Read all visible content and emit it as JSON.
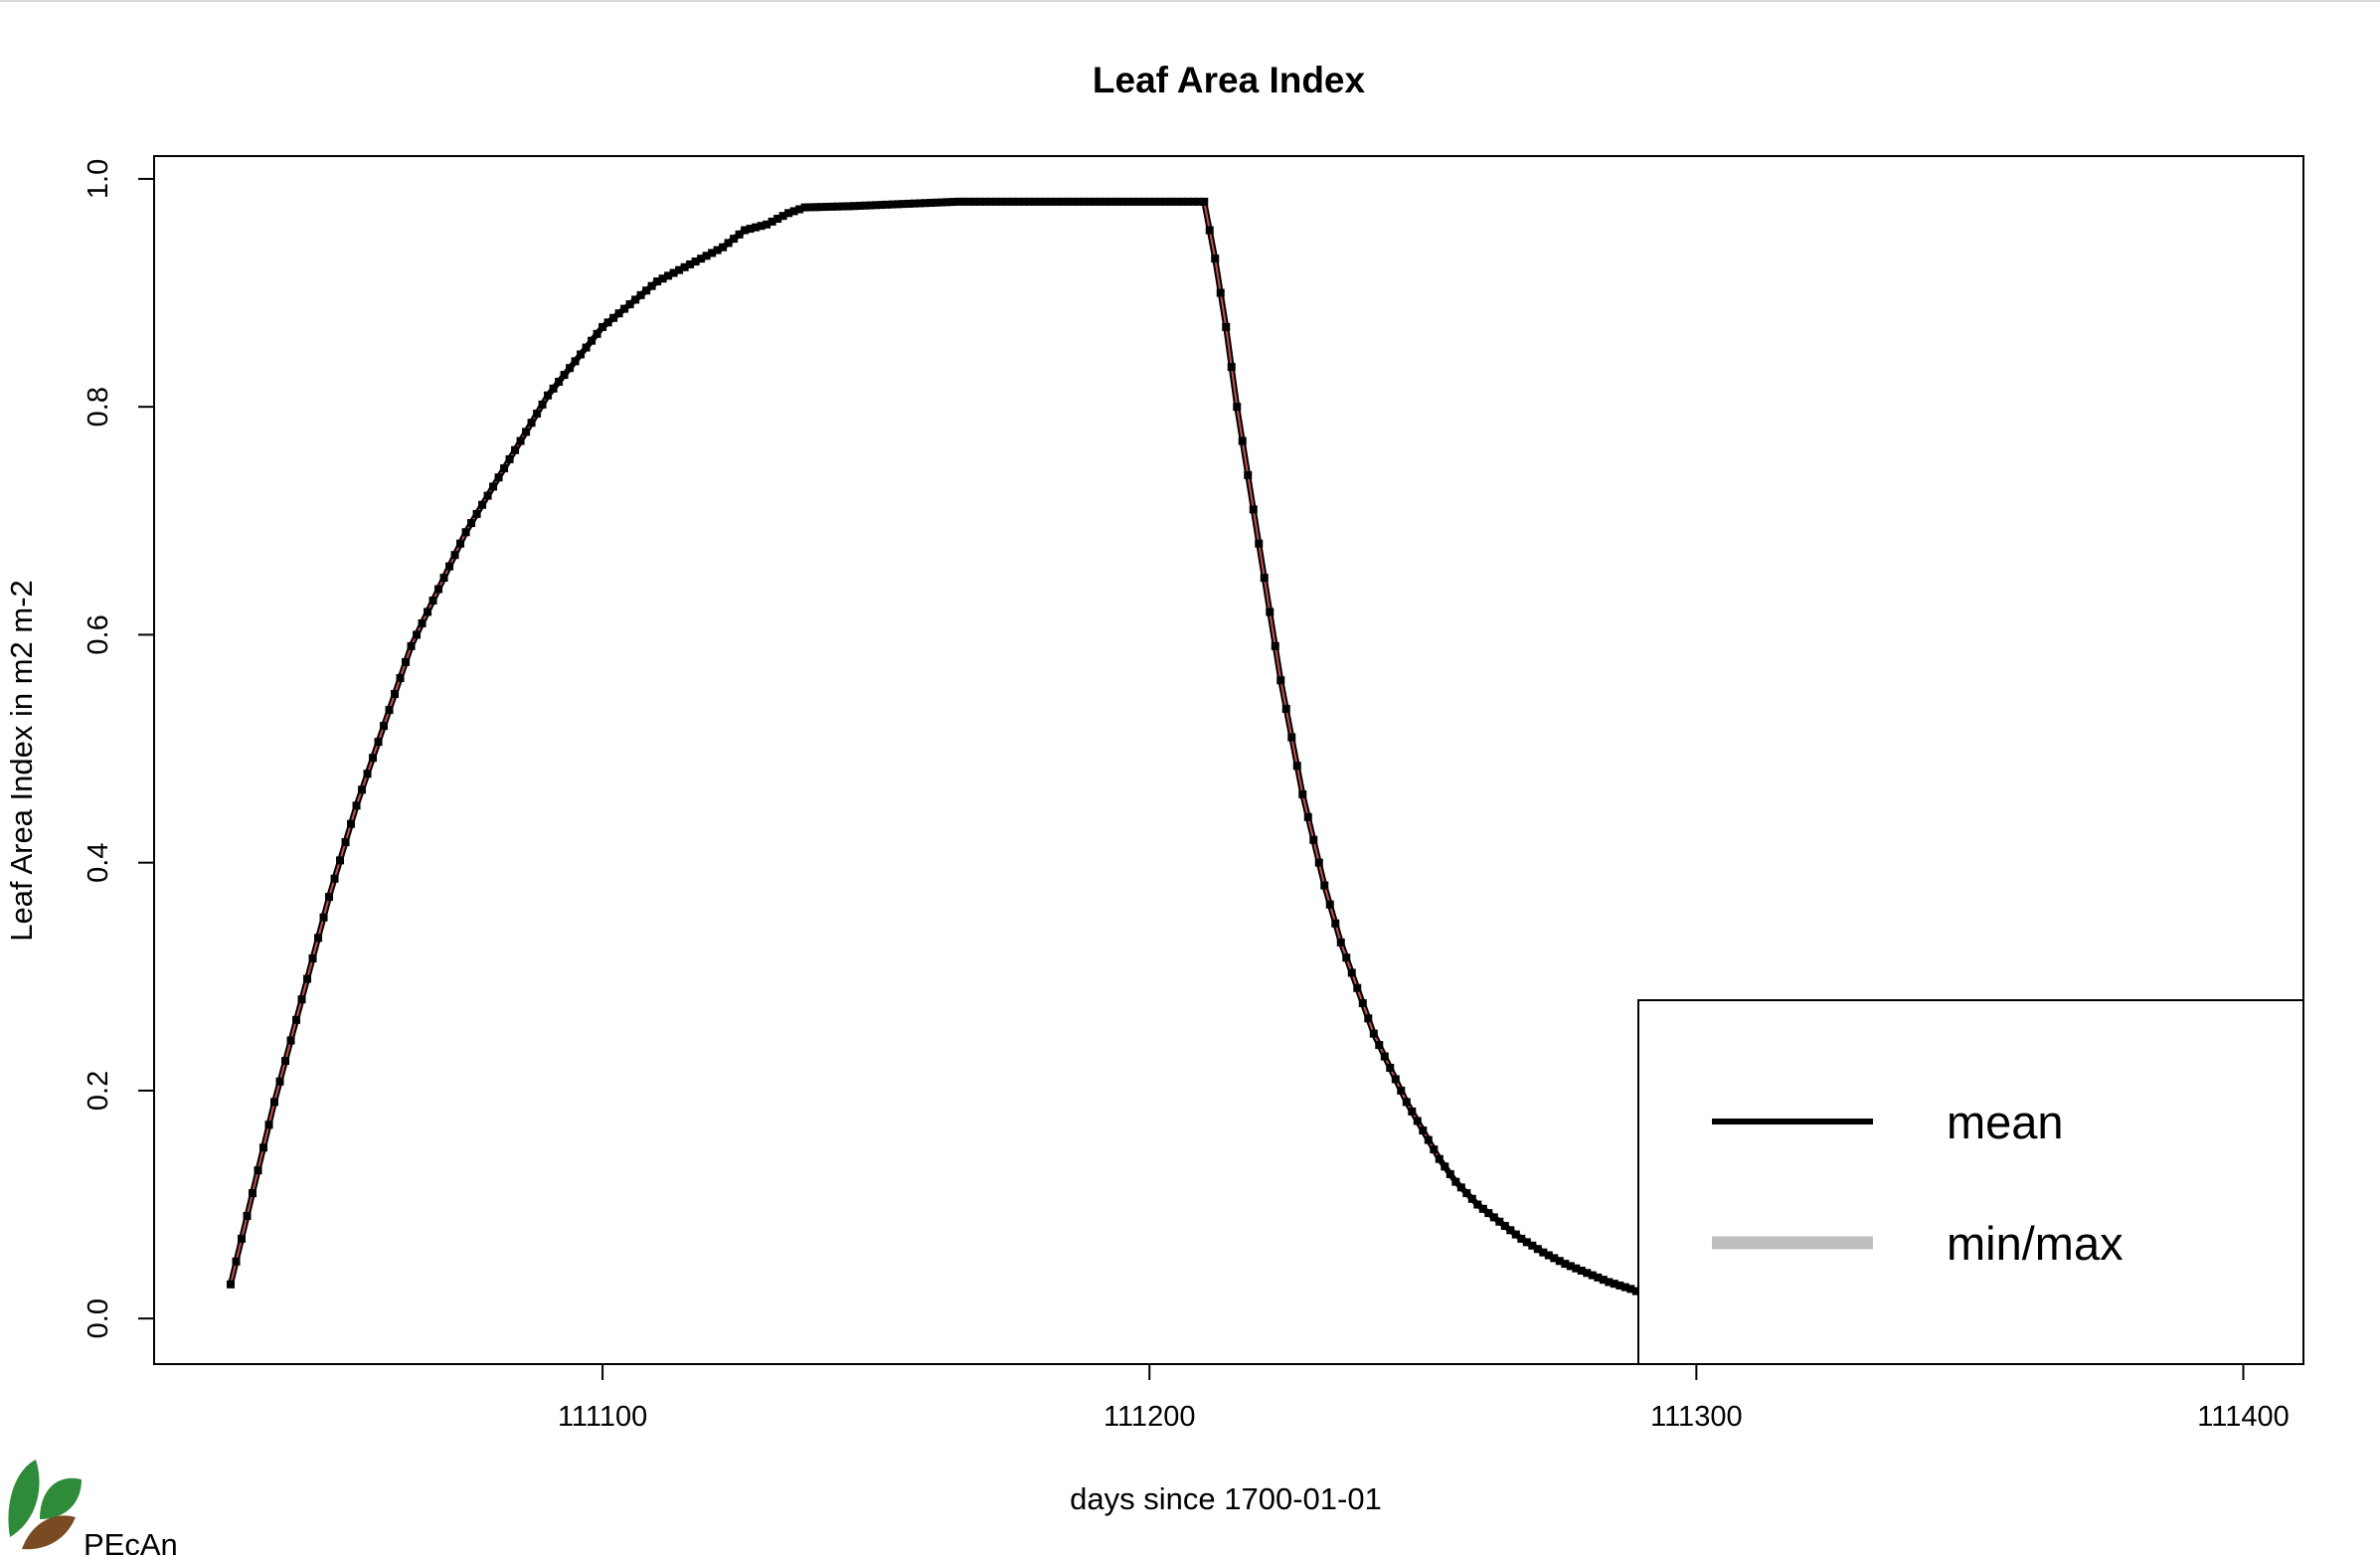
{
  "chart_data": {
    "type": "line",
    "title": "Leaf Area Index",
    "xlabel": "days since 1700-01-01",
    "ylabel": "Leaf Area Index in m2 m-2",
    "xlim": [
      111018,
      111411
    ],
    "ylim": [
      -0.04,
      1.02
    ],
    "x_ticks": [
      "111100",
      "111200",
      "111300",
      "111400"
    ],
    "y_ticks": [
      "0.0",
      "0.2",
      "0.4",
      "0.6",
      "0.8",
      "1.0"
    ],
    "grid": false,
    "legend_position": "bottom-right",
    "legend": [
      {
        "label": "mean",
        "color": "#000000"
      },
      {
        "label": "min/max",
        "color": "#bebebe"
      }
    ],
    "series": [
      {
        "name": "mean",
        "color": "#000000",
        "x": [
          111032,
          111036,
          111040,
          111045,
          111050,
          111055,
          111060,
          111065,
          111070,
          111075,
          111080,
          111085,
          111090,
          111095,
          111100,
          111105,
          111110,
          111114,
          111118,
          111122,
          111126,
          111130,
          111134,
          111137,
          111145,
          111155,
          111165,
          111180,
          111195,
          111210,
          111212,
          111214,
          111216,
          111218,
          111220,
          111222,
          111224,
          111226,
          111228,
          111230,
          111232,
          111235,
          111238,
          111241,
          111244,
          111247,
          111250,
          111253,
          111256,
          111260,
          111264,
          111268,
          111272,
          111276,
          111280,
          111284,
          111288,
          111290
        ],
        "y": [
          0.03,
          0.11,
          0.19,
          0.28,
          0.37,
          0.45,
          0.52,
          0.59,
          0.64,
          0.69,
          0.73,
          0.77,
          0.81,
          0.84,
          0.87,
          0.89,
          0.91,
          0.92,
          0.93,
          0.94,
          0.955,
          0.96,
          0.97,
          0.975,
          0.976,
          0.978,
          0.98,
          0.98,
          0.98,
          0.98,
          0.93,
          0.87,
          0.8,
          0.74,
          0.68,
          0.62,
          0.56,
          0.51,
          0.46,
          0.42,
          0.38,
          0.33,
          0.29,
          0.25,
          0.22,
          0.19,
          0.165,
          0.14,
          0.12,
          0.1,
          0.085,
          0.07,
          0.058,
          0.048,
          0.04,
          0.032,
          0.026,
          0.022
        ]
      },
      {
        "name": "min/max",
        "color": "#bebebe",
        "x": [
          111032,
          111036,
          111040,
          111045,
          111050,
          111055,
          111060,
          111065,
          111070,
          111075,
          111080,
          111085,
          111090,
          111095,
          111100,
          111105,
          111110,
          111114,
          111118,
          111122,
          111126,
          111130,
          111134,
          111137,
          111145,
          111155,
          111165,
          111180,
          111195,
          111210,
          111212,
          111214,
          111216,
          111218,
          111220,
          111222,
          111224,
          111226,
          111228,
          111230,
          111232,
          111235,
          111238,
          111241,
          111244,
          111247,
          111250,
          111253,
          111256,
          111260,
          111264,
          111268,
          111272,
          111276,
          111280,
          111284,
          111288,
          111290
        ],
        "y": [
          0.03,
          0.11,
          0.19,
          0.28,
          0.37,
          0.45,
          0.52,
          0.59,
          0.64,
          0.69,
          0.73,
          0.77,
          0.81,
          0.84,
          0.87,
          0.89,
          0.91,
          0.92,
          0.93,
          0.94,
          0.955,
          0.96,
          0.97,
          0.975,
          0.976,
          0.978,
          0.98,
          0.98,
          0.98,
          0.98,
          0.93,
          0.87,
          0.8,
          0.74,
          0.68,
          0.62,
          0.56,
          0.51,
          0.46,
          0.42,
          0.38,
          0.33,
          0.29,
          0.25,
          0.22,
          0.19,
          0.165,
          0.14,
          0.12,
          0.1,
          0.085,
          0.07,
          0.058,
          0.048,
          0.04,
          0.032,
          0.026,
          0.022
        ]
      }
    ]
  },
  "logo": {
    "text": "PEcAn",
    "leaf_colors": [
      "#2e8b3a",
      "#7a4a22"
    ]
  }
}
